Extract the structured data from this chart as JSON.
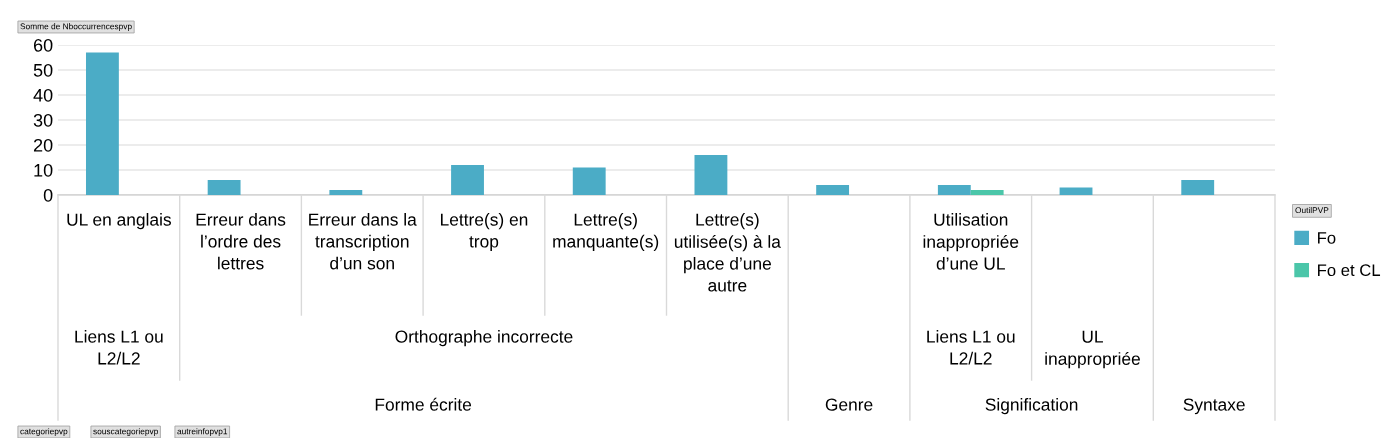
{
  "chart_data": {
    "type": "bar",
    "categories": [
      "UL en anglais",
      "Erreur dans\nl’ordre des\nlettres",
      "Erreur dans la\ntranscription\nd’un son",
      "Lettre(s) en\ntrop",
      "Lettre(s)\nmanquante(s)",
      "Lettre(s)\nutilisée(s) à la\nplace d’une\nautre",
      null,
      "Utilisation\ninappropriée\nd’une UL",
      null,
      null
    ],
    "series": [
      {
        "name": "Fo",
        "color": "#4bacc6",
        "values": [
          57,
          6,
          2,
          12,
          11,
          16,
          4,
          4,
          3,
          6
        ]
      },
      {
        "name": "Fo et CL",
        "color": "#4bc6a9",
        "values": [
          null,
          null,
          null,
          null,
          null,
          null,
          null,
          2,
          null,
          null
        ]
      }
    ],
    "ylim": [
      0,
      60
    ],
    "yticks": [
      0,
      10,
      20,
      30,
      40,
      50,
      60
    ],
    "grid": "y",
    "legend": "right",
    "legend_title": "OutilPVP",
    "annotations": [
      "Liens L1 ou\nL2/L2",
      "Orthographe incorrecte",
      "Liens L1 ou\nL2/L2",
      "UL\ninappropriée",
      "Forme écrite",
      "Genre",
      "Signification",
      "Syntaxe",
      "Somme de Nboccurrencespvp",
      "categoriepvp",
      "souscategoriepvp",
      "autreinfopvp1"
    ]
  }
}
